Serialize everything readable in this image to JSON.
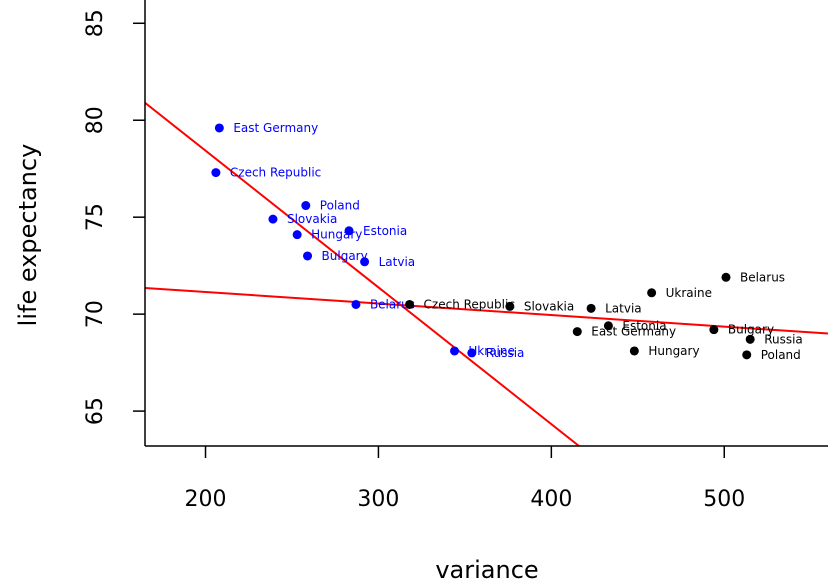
{
  "chart_data": {
    "type": "scatter",
    "title": "",
    "xlabel": "variance",
    "ylabel": "life expectancy",
    "xlim": [
      165,
      560
    ],
    "ylim": [
      63.2,
      86.2
    ],
    "xticks": [
      200,
      300,
      400,
      500
    ],
    "yticks": [
      65,
      70,
      75,
      80,
      85
    ],
    "grid": false,
    "series": [
      {
        "color": "#0000ff",
        "points": [
          {
            "label": "East Germany",
            "x": 208,
            "y": 79.6
          },
          {
            "label": "Czech Republic",
            "x": 206,
            "y": 77.3
          },
          {
            "label": "Poland",
            "x": 258,
            "y": 75.6
          },
          {
            "label": "Slovakia",
            "x": 239,
            "y": 74.9
          },
          {
            "label": "Estonia",
            "x": 283,
            "y": 74.3
          },
          {
            "label": "Hungary",
            "x": 253,
            "y": 74.1
          },
          {
            "label": "Bulgary",
            "x": 259,
            "y": 73.0
          },
          {
            "label": "Latvia",
            "x": 292,
            "y": 72.7
          },
          {
            "label": "Belarus",
            "x": 287,
            "y": 70.5
          },
          {
            "label": "Ukraine",
            "x": 344,
            "y": 68.1
          },
          {
            "label": "Russia",
            "x": 354,
            "y": 68.0
          }
        ]
      },
      {
        "color": "#000000",
        "points": [
          {
            "label": "Belarus",
            "x": 501,
            "y": 71.9
          },
          {
            "label": "Ukraine",
            "x": 458,
            "y": 71.1
          },
          {
            "label": "Czech Republic",
            "x": 318,
            "y": 70.5
          },
          {
            "label": "Slovakia",
            "x": 376,
            "y": 70.4
          },
          {
            "label": "Latvia",
            "x": 423,
            "y": 70.3
          },
          {
            "label": "Estonia",
            "x": 433,
            "y": 69.4
          },
          {
            "label": "East Germany",
            "x": 415,
            "y": 69.1
          },
          {
            "label": "Bulgary",
            "x": 494,
            "y": 69.2
          },
          {
            "label": "Russia",
            "x": 515,
            "y": 68.7
          },
          {
            "label": "Hungary",
            "x": 448,
            "y": 68.1
          },
          {
            "label": "Poland",
            "x": 513,
            "y": 67.9
          }
        ]
      }
    ],
    "lines": [
      {
        "color": "#ff0000",
        "from": [
          165,
          80.9
        ],
        "to": [
          416,
          63.2
        ]
      },
      {
        "color": "#ff0000",
        "from": [
          165,
          71.35
        ],
        "to": [
          560,
          69.0
        ]
      }
    ]
  }
}
